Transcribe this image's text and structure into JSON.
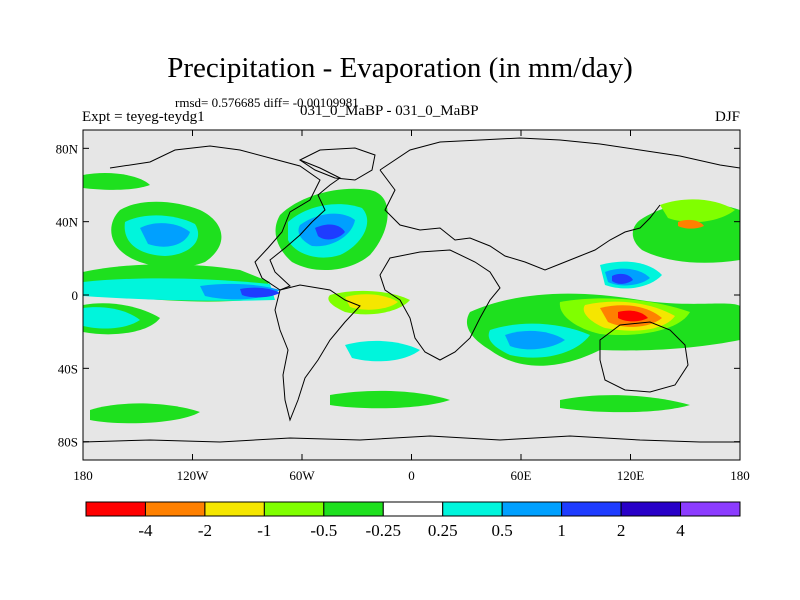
{
  "title": "Precipitation - Evaporation (in mm/day)",
  "stats_text": "rmsd= 0.576685 diff= -0.00109981",
  "left_label": "Expt = teyeg-teydg1",
  "center_label": "031_0_MaBP - 031_0_MaBP",
  "right_label": "DJF",
  "map": {
    "ocean_color": "#e6e6e6",
    "x_ticks": [
      {
        "lon": -180,
        "label": "180"
      },
      {
        "lon": -120,
        "label": "120W"
      },
      {
        "lon": -60,
        "label": "60W"
      },
      {
        "lon": 0,
        "label": "0"
      },
      {
        "lon": 60,
        "label": "60E"
      },
      {
        "lon": 120,
        "label": "120E"
      },
      {
        "lon": 180,
        "label": "180"
      }
    ],
    "y_ticks": [
      {
        "lat": 80,
        "label": "80N"
      },
      {
        "lat": 40,
        "label": "40N"
      },
      {
        "lat": 0,
        "label": "0"
      },
      {
        "lat": -40,
        "label": "40S"
      },
      {
        "lat": -80,
        "label": "80S"
      }
    ]
  },
  "colorbar": {
    "colors": [
      "#ff0000",
      "#ff8000",
      "#f5e600",
      "#80ff00",
      "#1ee01e",
      "#ffffff",
      "#00f5dc",
      "#00a0ff",
      "#1e3cff",
      "#2800c8",
      "#8c3cff"
    ],
    "labels": [
      "-4",
      "-2",
      "-1",
      "-0.5",
      "-0.25",
      "0.25",
      "0.5",
      "1",
      "2",
      "4"
    ]
  }
}
